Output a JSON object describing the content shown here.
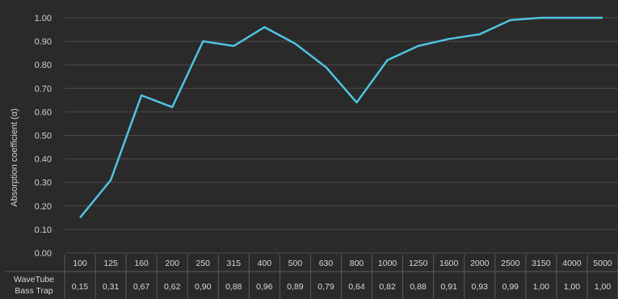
{
  "chart_data": {
    "type": "line",
    "title": "",
    "xlabel": "",
    "ylabel": "Absorption coefficient (α)",
    "ylim": [
      0,
      1
    ],
    "y_ticks": [
      "0.00",
      "0.10",
      "0.20",
      "0.30",
      "0.40",
      "0.50",
      "0.60",
      "0.70",
      "0.80",
      "0.90",
      "1.00"
    ],
    "grid": true,
    "categories": [
      "100",
      "125",
      "160",
      "200",
      "250",
      "315",
      "400",
      "500",
      "630",
      "800",
      "1000",
      "1250",
      "1600",
      "2000",
      "2500",
      "3150",
      "4000",
      "5000"
    ],
    "series": [
      {
        "name": "WaveTube Bass Trap",
        "values": [
          0.15,
          0.31,
          0.67,
          0.62,
          0.9,
          0.88,
          0.96,
          0.89,
          0.79,
          0.64,
          0.82,
          0.88,
          0.91,
          0.93,
          0.99,
          1.0,
          1.0,
          1.0
        ],
        "labels": [
          "0,15",
          "0,31",
          "0,67",
          "0,62",
          "0,90",
          "0,88",
          "0,96",
          "0,89",
          "0,79",
          "0,64",
          "0,82",
          "0,88",
          "0,91",
          "0,93",
          "0,99",
          "1,00",
          "1,00",
          "1,00"
        ],
        "color": "#4fc3e0"
      }
    ],
    "table": {
      "row_header_line1": "WaveTube",
      "row_header_line2": "Bass Trap"
    },
    "colors": {
      "background": "#2a2a2a",
      "grid": "#4a4a4a",
      "table_border": "#5a5a5a",
      "line": "#4fc3e0"
    }
  }
}
